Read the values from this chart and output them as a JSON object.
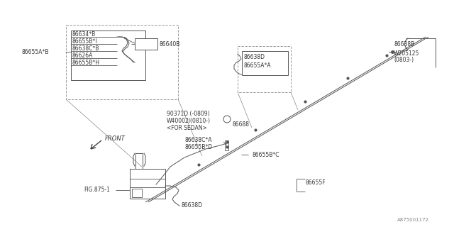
{
  "bg_color": "#ffffff",
  "lc": "#555555",
  "tc": "#333333",
  "fig_width": 6.4,
  "fig_height": 3.2,
  "watermark": "A875001172",
  "fs": 5.5,
  "labels": {
    "86655A_B": "86655A*B",
    "86634_B": "86634*B",
    "86655B_I": "86655B*I",
    "86638C_B": "86638C*B",
    "86626A": "86626A",
    "86655B_H": "86655B*H",
    "86640B": "86640B",
    "86638D_top": "86638D",
    "86655A_A": "86655A*A",
    "86638B": "86638B",
    "W205125": "W205125",
    "0803": "(0803-)",
    "90371D": "90371D (-0809)",
    "W40002I": "W40002I(0810-)",
    "FOR_SEDAN": "<FOR SEDAN>",
    "86688": "86688",
    "86638C_A": "86638C*A",
    "86655B_D": "86655B*D",
    "86655B_C": "86655B*C",
    "86655F": "86655F",
    "FIG875": "FIG.875-1",
    "86638D_bot": "86638D",
    "FRONT": "FRONT"
  }
}
